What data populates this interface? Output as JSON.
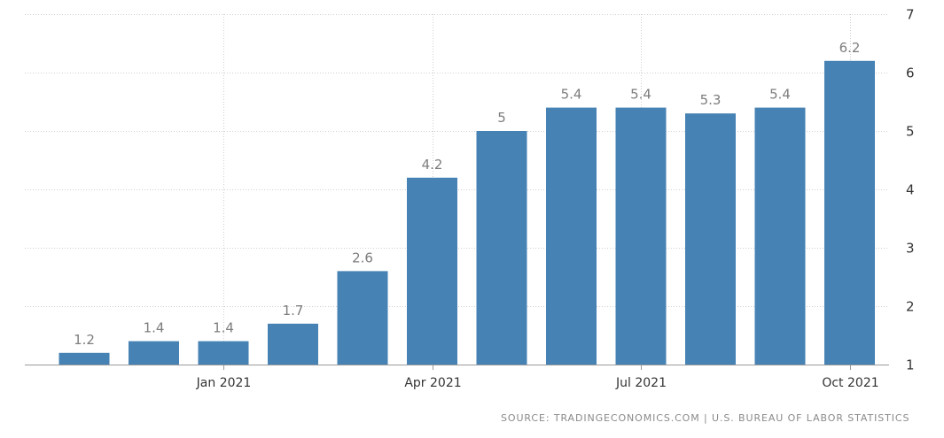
{
  "chart_data": {
    "type": "bar",
    "categories": [
      "Nov 2020",
      "Dec 2020",
      "Jan 2021",
      "Feb 2021",
      "Mar 2021",
      "Apr 2021",
      "May 2021",
      "Jun 2021",
      "Jul 2021",
      "Aug 2021",
      "Sep 2021",
      "Oct 2021"
    ],
    "values": [
      1.2,
      1.4,
      1.4,
      1.7,
      2.6,
      4.2,
      5,
      5.4,
      5.4,
      5.3,
      5.4,
      6.2
    ],
    "data_labels": [
      "1.2",
      "1.4",
      "1.4",
      "1.7",
      "2.6",
      "4.2",
      "5",
      "5.4",
      "5.4",
      "5.3",
      "5.4",
      "6.2"
    ],
    "x_tick_labels": [
      {
        "category": "Jan 2021",
        "label": "Jan 2021"
      },
      {
        "category": "Apr 2021",
        "label": "Apr 2021"
      },
      {
        "category": "Jul 2021",
        "label": "Jul 2021"
      },
      {
        "category": "Oct 2021",
        "label": "Oct 2021"
      }
    ],
    "y_ticks": [
      1,
      2,
      3,
      4,
      5,
      6,
      7
    ],
    "ylim": [
      1,
      7
    ],
    "y_axis_side": "right",
    "grid": true,
    "legend": "none",
    "title": "",
    "xlabel": "",
    "ylabel": "",
    "bar_color": "#4682b4",
    "label_color": "#7d7d7d"
  },
  "source_text": "SOURCE: TRADINGECONOMICS.COM | U.S. BUREAU OF LABOR STATISTICS"
}
